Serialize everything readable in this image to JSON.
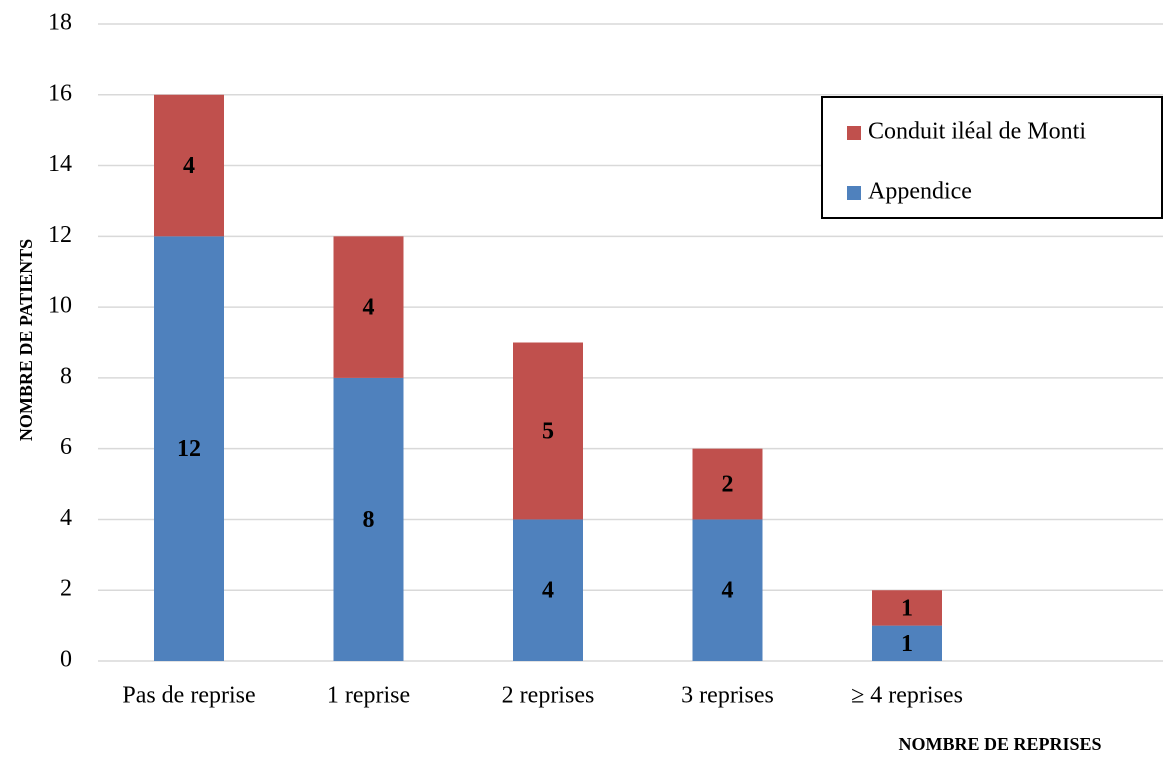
{
  "chart_data": {
    "type": "stacked-bar",
    "y_label": "NOMBRE DE PATIENTS",
    "x_label": "NOMBRE DE REPRISES",
    "categories": [
      "Pas de reprise",
      "1 reprise",
      "2 reprises",
      "3 reprises",
      "≥ 4 reprises"
    ],
    "series": [
      {
        "name": "Appendice",
        "color": "#4f81bd",
        "values": [
          12,
          8,
          4,
          4,
          1
        ]
      },
      {
        "name": "Conduit iléal de Monti",
        "color": "#c0504d",
        "values": [
          4,
          4,
          5,
          2,
          1
        ]
      }
    ],
    "ylim": [
      0,
      18
    ],
    "yticks": [
      0,
      2,
      4,
      6,
      8,
      10,
      12,
      14,
      16,
      18
    ],
    "grid": true,
    "legend": "upper right"
  }
}
